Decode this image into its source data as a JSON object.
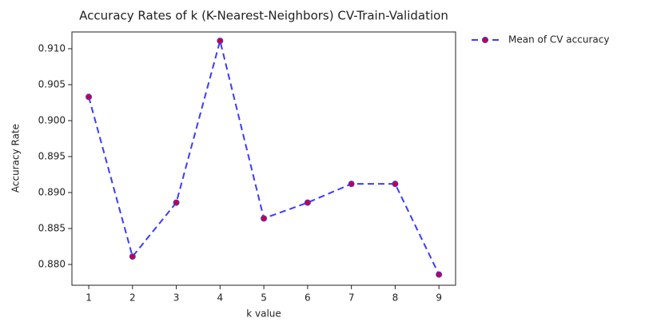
{
  "chart_data": {
    "type": "line",
    "title": "Accuracy Rates of k (K-Nearest-Neighbors) CV-Train-Validation",
    "x_label": "k value",
    "y_label": "Accuracy Rate",
    "x": [
      1,
      2,
      3,
      4,
      5,
      6,
      7,
      8,
      9
    ],
    "series": [
      {
        "name": "Mean of CV accuracy",
        "color": "#3b3bff",
        "marker_color": "#cc0033",
        "values": [
          0.9033,
          0.8811,
          0.8886,
          0.9111,
          0.8864,
          0.8886,
          0.8912,
          0.8912,
          0.8786
        ]
      }
    ],
    "xlim": [
      0.616,
      9.38
    ],
    "xticks": [
      1,
      2,
      3,
      4,
      5,
      6,
      7,
      8,
      9
    ],
    "ylim": [
      0.87711,
      0.91233
    ],
    "yticks": [
      {
        "value": 0.88,
        "label": "0.880"
      },
      {
        "value": 0.885,
        "label": "0.885"
      },
      {
        "value": 0.89,
        "label": "0.890"
      },
      {
        "value": 0.895,
        "label": "0.895"
      },
      {
        "value": 0.9,
        "label": "0.900"
      },
      {
        "value": 0.905,
        "label": "0.905"
      },
      {
        "value": 0.91,
        "label": "0.910"
      }
    ]
  }
}
